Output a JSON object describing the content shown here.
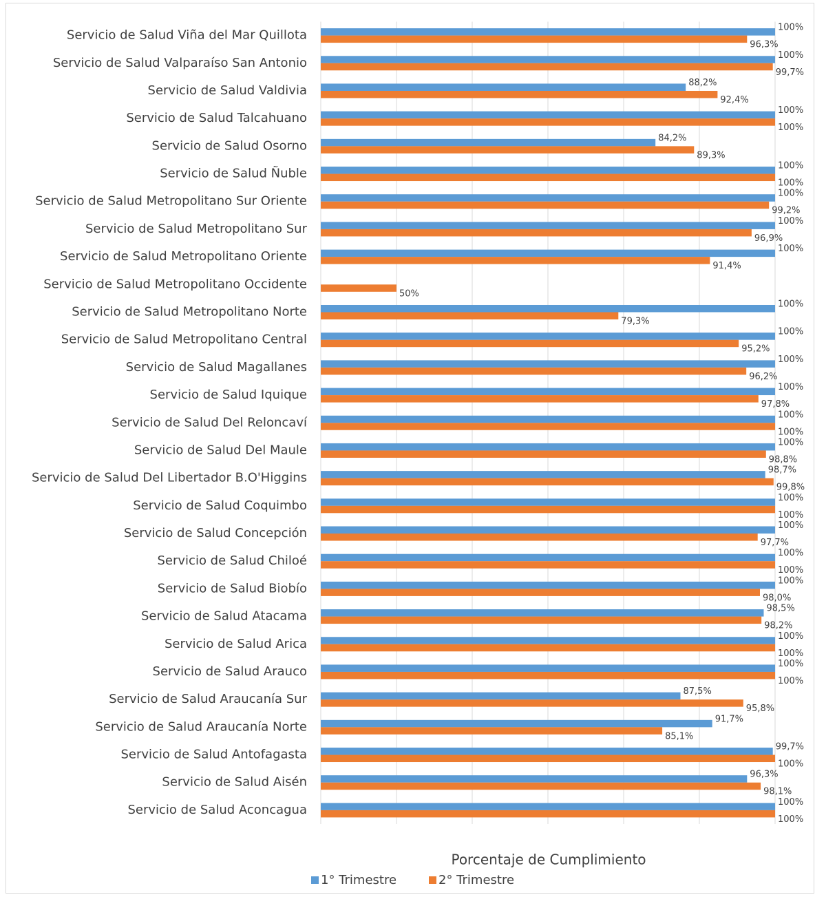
{
  "chart_data": {
    "type": "barh",
    "xlabel": "Porcentaje de Cumplimiento",
    "categories": [
      "Servicio de Salud Viña del Mar Quillota",
      "Servicio de Salud Valparaíso San Antonio",
      "Servicio de Salud Valdivia",
      "Servicio de Salud Talcahuano",
      "Servicio de Salud Osorno",
      "Servicio de Salud Ñuble",
      "Servicio de Salud Metropolitano Sur Oriente",
      "Servicio de Salud Metropolitano Sur",
      "Servicio de Salud Metropolitano Oriente",
      "Servicio de Salud Metropolitano Occidente",
      "Servicio de Salud Metropolitano Norte",
      "Servicio de Salud Metropolitano Central",
      "Servicio de Salud Magallanes",
      "Servicio de Salud Iquique",
      "Servicio de Salud Del Reloncaví",
      "Servicio de Salud Del Maule",
      "Servicio de Salud Del Libertador B.O'Higgins",
      "Servicio de Salud Coquimbo",
      "Servicio de Salud Concepción",
      "Servicio de Salud Chiloé",
      "Servicio de Salud Biobío",
      "Servicio de Salud Atacama",
      "Servicio de Salud Arica",
      "Servicio de Salud Arauco",
      "Servicio de Salud Araucanía Sur",
      "Servicio de Salud Araucanía Norte",
      "Servicio de Salud Antofagasta",
      "Servicio de Salud Aisén",
      "Servicio de Salud Aconcagua"
    ],
    "series": [
      {
        "name": "1° Trimestre",
        "color": "#5b9bd5",
        "values": [
          100,
          100,
          88.2,
          100,
          84.2,
          100,
          100,
          100,
          100,
          null,
          100,
          100,
          100,
          100,
          100,
          100,
          98.7,
          100,
          100,
          100,
          100,
          98.5,
          100,
          100,
          87.5,
          91.7,
          99.7,
          96.3,
          100
        ],
        "value_labels": [
          "100%",
          "100%",
          "88,2%",
          "100%",
          "84,2%",
          "100%",
          "100%",
          "100%",
          "100%",
          null,
          "100%",
          "100%",
          "100%",
          "100%",
          "100%",
          "100%",
          "98,7%",
          "100%",
          "100%",
          "100%",
          "100%",
          "98,5%",
          "100%",
          "100%",
          "87,5%",
          "91,7%",
          "99,7%",
          "96,3%",
          "100%"
        ]
      },
      {
        "name": "2° Trimestre",
        "color": "#ed7d31",
        "values": [
          96.3,
          99.7,
          92.4,
          100,
          89.3,
          100,
          99.2,
          96.9,
          91.4,
          50,
          79.3,
          95.2,
          96.2,
          97.8,
          100,
          98.8,
          99.8,
          100,
          97.7,
          100,
          98.0,
          98.2,
          100,
          100,
          95.8,
          85.1,
          100,
          98.1,
          100
        ],
        "value_labels": [
          "96,3%",
          "99,7%",
          "92,4%",
          "100%",
          "89,3%",
          "100%",
          "99,2%",
          "96,9%",
          "91,4%",
          "50%",
          "79,3%",
          "95,2%",
          "96,2%",
          "97,8%",
          "100%",
          "98,8%",
          "99,8%",
          "100%",
          "97,7%",
          "100%",
          "98,0%",
          "98,2%",
          "100%",
          "100%",
          "95,8%",
          "85,1%",
          "100%",
          "98,1%",
          "100%"
        ]
      }
    ],
    "xlim": [
      40,
      100
    ],
    "xticks": [
      40,
      50,
      60,
      70,
      80,
      90,
      100
    ],
    "grid": true,
    "legend": "bottom"
  }
}
